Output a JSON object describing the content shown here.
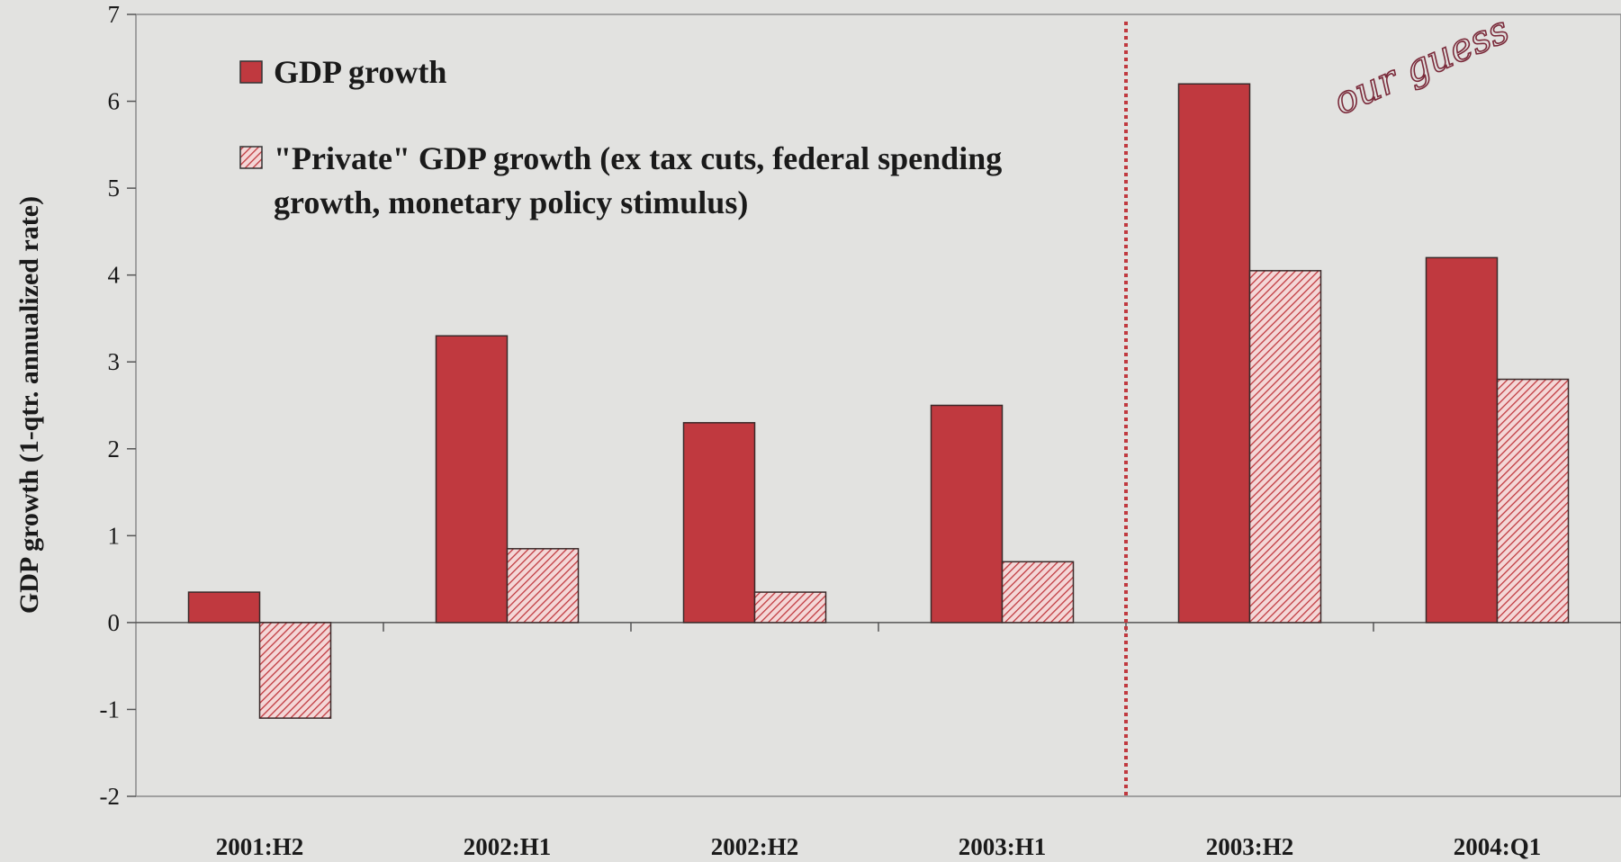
{
  "chart_data": {
    "type": "bar",
    "ylabel": "GDP growth (1-qtr. annualized rate)",
    "xlabel": "",
    "ylim": [
      -2,
      7
    ],
    "yticks": [
      -2,
      -1,
      0,
      1,
      2,
      3,
      4,
      5,
      6,
      7
    ],
    "categories": [
      "2001:H2",
      "2002:H1",
      "2002:H2",
      "2003:H1",
      "2003:H2",
      "2004:Q1"
    ],
    "series": [
      {
        "name": "GDP growth",
        "values": [
          0.35,
          3.3,
          2.3,
          2.5,
          6.2,
          4.2
        ],
        "color": "#c0393f",
        "pattern": "solid"
      },
      {
        "name": "\"Private\" GDP growth (ex tax cuts, federal spending growth, monetary policy stimulus)",
        "values": [
          -1.1,
          0.85,
          0.35,
          0.7,
          4.05,
          2.8
        ],
        "color": "#c0393f",
        "pattern": "hatched"
      }
    ],
    "legend_position": "top-left",
    "divider": {
      "after_category": "2003:H1",
      "style": "dotted",
      "color": "#c0393f"
    },
    "annotation": "our guess",
    "grid": false
  }
}
